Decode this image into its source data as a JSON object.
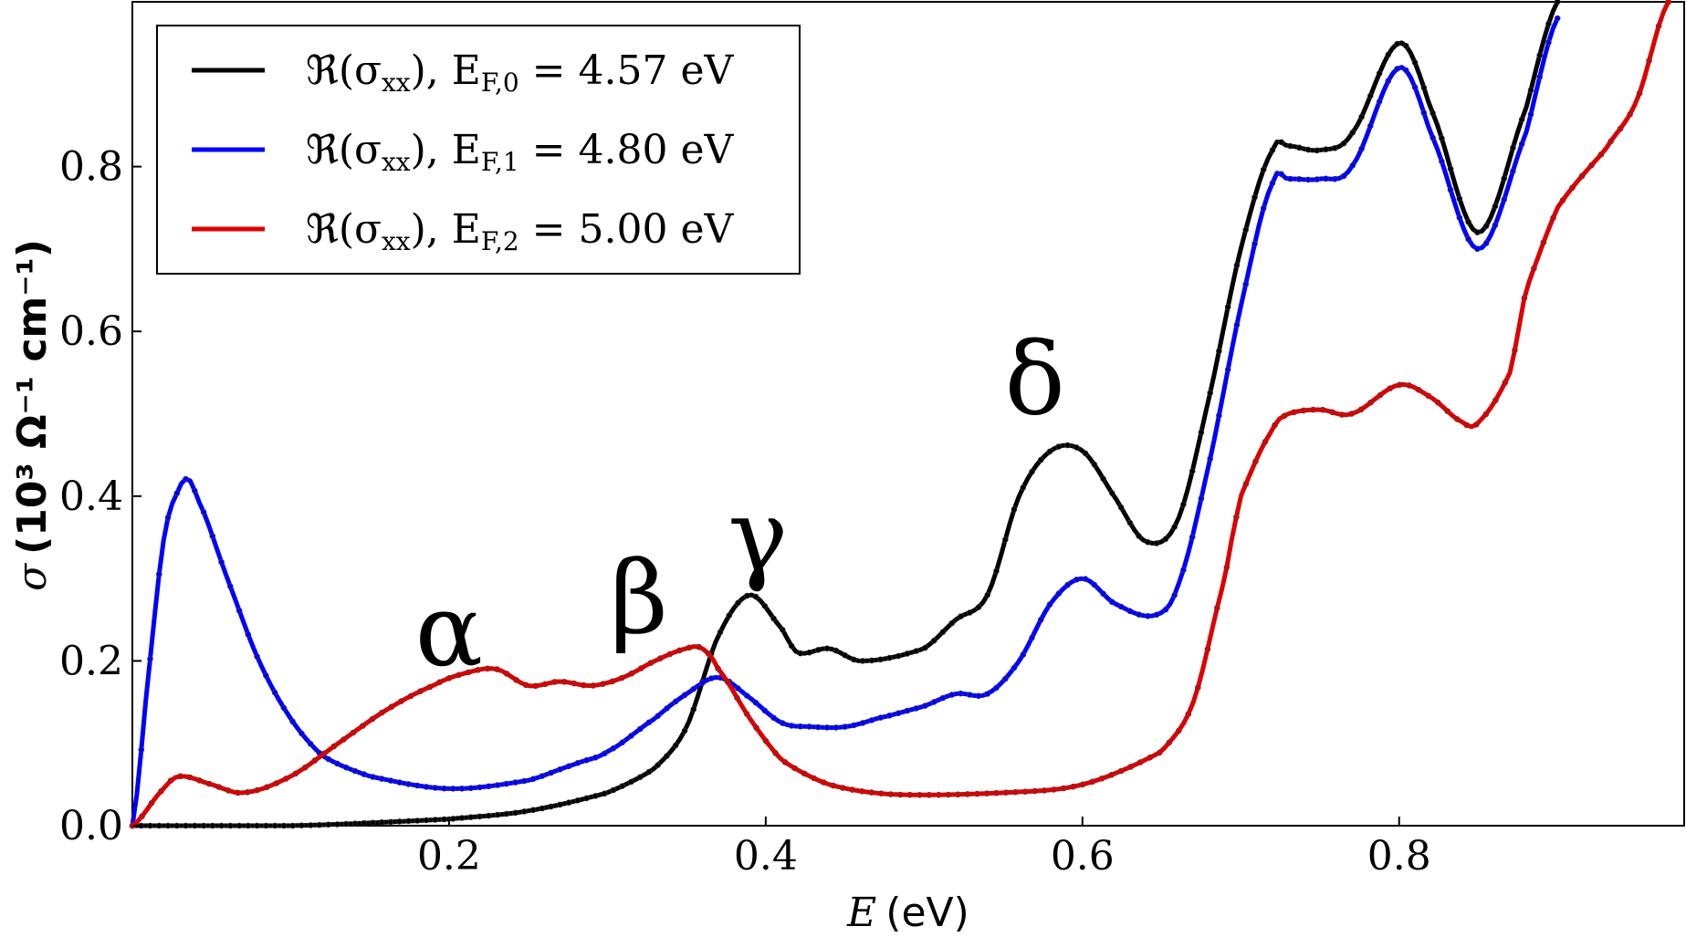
{
  "chart_data": {
    "type": "line",
    "title": "",
    "xlabel": "E (eV)",
    "xlabel_var": "E",
    "xlabel_unit": "(eV)",
    "ylabel": "σ (10³ Ω⁻¹ cm⁻¹)",
    "ylabel_var": "σ",
    "ylabel_unit": "(10³ Ω⁻¹ cm⁻¹)",
    "xlim": [
      0.0,
      0.98
    ],
    "ylim": [
      0.0,
      1.0
    ],
    "xticks": [
      0.2,
      0.4,
      0.6,
      0.8
    ],
    "xtick_labels": [
      "0.2",
      "0.4",
      "0.6",
      "0.8"
    ],
    "yticks": [
      0.0,
      0.2,
      0.4,
      0.6,
      0.8
    ],
    "ytick_labels": [
      "0.0",
      "0.2",
      "0.4",
      "0.6",
      "0.8"
    ],
    "grid": false,
    "legend_position": "top-left",
    "series": [
      {
        "name": "ℜ(σxx), EF,0 = 4.57 eV",
        "legend_prefix": "ℜ(σ",
        "legend_sub": "xx",
        "legend_mid": "), E",
        "legend_sub2": "F,0",
        "legend_value": " = 4.57 eV",
        "color": "#000000",
        "x": [
          0.0,
          0.1,
          0.2,
          0.25,
          0.3,
          0.33,
          0.35,
          0.37,
          0.39,
          0.41,
          0.42,
          0.44,
          0.46,
          0.5,
          0.52,
          0.54,
          0.56,
          0.58,
          0.6,
          0.62,
          0.64,
          0.66,
          0.68,
          0.7,
          0.72,
          0.73,
          0.75,
          0.77,
          0.8,
          0.82,
          0.85,
          0.88,
          0.9
        ],
        "values": [
          0.0,
          0.0,
          0.008,
          0.018,
          0.04,
          0.07,
          0.12,
          0.23,
          0.28,
          0.24,
          0.21,
          0.215,
          0.2,
          0.215,
          0.25,
          0.28,
          0.4,
          0.455,
          0.455,
          0.4,
          0.345,
          0.37,
          0.52,
          0.7,
          0.82,
          0.825,
          0.82,
          0.84,
          0.95,
          0.87,
          0.72,
          0.87,
          1.0
        ]
      },
      {
        "name": "ℜ(σxx), EF,1 = 4.80 eV",
        "legend_prefix": "ℜ(σ",
        "legend_sub": "xx",
        "legend_mid": "), E",
        "legend_sub2": "F,1",
        "legend_value": " = 4.80 eV",
        "color": "#0000ff",
        "x": [
          0.0,
          0.01,
          0.02,
          0.03,
          0.035,
          0.04,
          0.06,
          0.08,
          0.1,
          0.12,
          0.15,
          0.2,
          0.25,
          0.28,
          0.3,
          0.33,
          0.35,
          0.37,
          0.39,
          0.41,
          0.43,
          0.45,
          0.47,
          0.5,
          0.52,
          0.54,
          0.56,
          0.58,
          0.6,
          0.62,
          0.645,
          0.66,
          0.68,
          0.7,
          0.72,
          0.73,
          0.75,
          0.77,
          0.8,
          0.82,
          0.85,
          0.88,
          0.9
        ],
        "values": [
          0.0,
          0.18,
          0.35,
          0.41,
          0.42,
          0.4,
          0.3,
          0.2,
          0.13,
          0.085,
          0.06,
          0.045,
          0.055,
          0.075,
          0.09,
          0.13,
          0.16,
          0.18,
          0.155,
          0.125,
          0.12,
          0.12,
          0.13,
          0.145,
          0.16,
          0.16,
          0.2,
          0.27,
          0.3,
          0.27,
          0.255,
          0.29,
          0.44,
          0.63,
          0.78,
          0.785,
          0.785,
          0.8,
          0.92,
          0.84,
          0.7,
          0.84,
          0.98
        ]
      },
      {
        "name": "ℜ(σxx), EF,2 = 5.00 eV",
        "legend_prefix": "ℜ(σ",
        "legend_sub": "xx",
        "legend_mid": "), E",
        "legend_sub2": "F,2",
        "legend_value": " = 5.00 eV",
        "color": "#dd0000",
        "x": [
          0.0,
          0.02,
          0.03,
          0.05,
          0.07,
          0.1,
          0.13,
          0.16,
          0.19,
          0.21,
          0.23,
          0.25,
          0.27,
          0.29,
          0.31,
          0.33,
          0.35,
          0.36,
          0.37,
          0.39,
          0.41,
          0.44,
          0.48,
          0.55,
          0.6,
          0.65,
          0.67,
          0.69,
          0.7,
          0.72,
          0.73,
          0.75,
          0.77,
          0.8,
          0.82,
          0.84,
          0.85,
          0.87,
          0.88,
          0.9,
          0.93,
          0.95,
          0.97
        ],
        "values": [
          0.0,
          0.045,
          0.06,
          0.05,
          0.04,
          0.06,
          0.1,
          0.14,
          0.17,
          0.185,
          0.19,
          0.17,
          0.175,
          0.17,
          0.18,
          0.2,
          0.215,
          0.215,
          0.19,
          0.13,
          0.08,
          0.05,
          0.038,
          0.04,
          0.05,
          0.09,
          0.15,
          0.3,
          0.4,
          0.48,
          0.5,
          0.505,
          0.5,
          0.535,
          0.52,
          0.49,
          0.49,
          0.55,
          0.65,
          0.75,
          0.82,
          0.88,
          1.0
        ]
      }
    ],
    "annotations": [
      {
        "text": "α",
        "x": 0.2,
        "y": 0.195
      },
      {
        "text": "β",
        "x": 0.32,
        "y": 0.235
      },
      {
        "text": "γ",
        "x": 0.395,
        "y": 0.31
      },
      {
        "text": "δ",
        "x": 0.57,
        "y": 0.5
      }
    ]
  }
}
